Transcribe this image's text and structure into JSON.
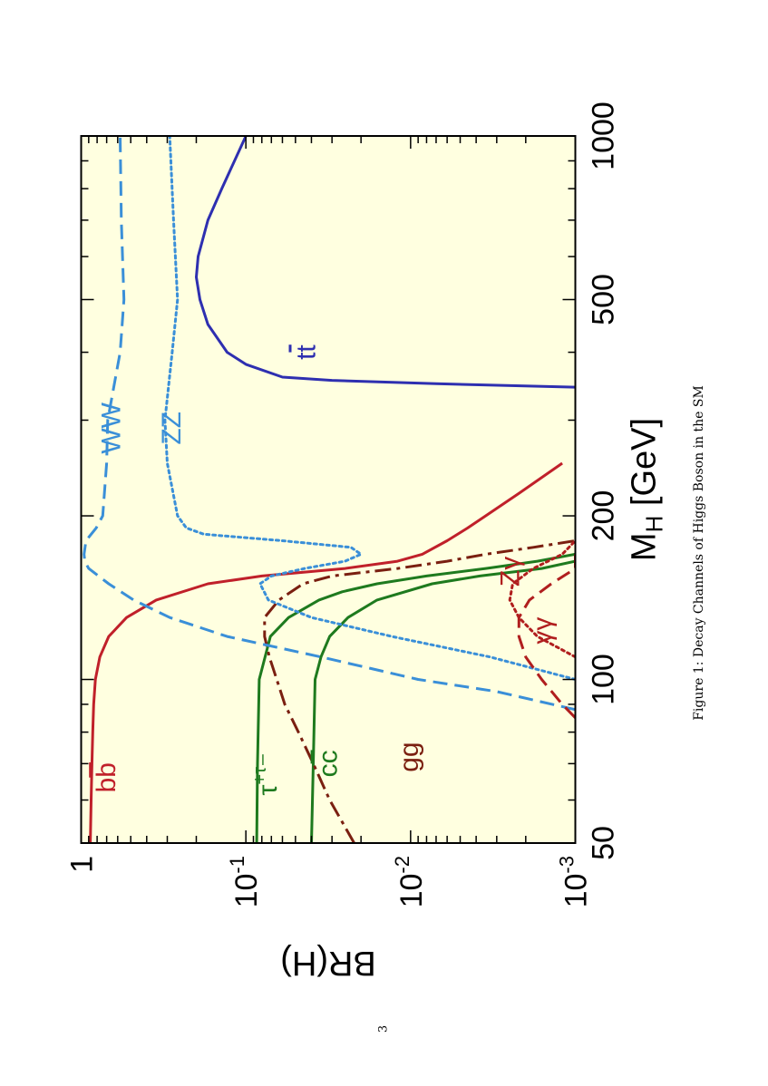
{
  "figure": {
    "caption": "Figure 1: Decay Channels of Higgs Boson in the SM",
    "page_number": "3"
  },
  "chart_data": {
    "type": "line",
    "orientation": "rotated 90° counter-clockwise on the page",
    "xlabel": "M_H [GeV]",
    "ylabel": "BR(H)",
    "xscale": "log",
    "yscale": "log",
    "xlim": [
      50,
      1000
    ],
    "ylim": [
      0.001,
      1
    ],
    "x_ticks": [
      50,
      100,
      200,
      500,
      1000
    ],
    "y_ticks": [
      {
        "value": 1,
        "label": "1"
      },
      {
        "value": 0.1,
        "label": "10",
        "exp": "-1"
      },
      {
        "value": 0.01,
        "label": "10",
        "exp": "-2"
      },
      {
        "value": 0.001,
        "label": "10",
        "exp": "-3"
      }
    ],
    "background": "#ffffe0",
    "grid": false,
    "series": [
      {
        "name": "bb",
        "label_main": "b",
        "label_sup": "",
        "bar": "b",
        "label_at": [
          66,
          0.62
        ],
        "color": "#c0202a",
        "dash": "solid",
        "x": [
          50,
          60,
          70,
          80,
          90,
          100,
          110,
          120,
          130,
          140,
          150,
          155,
          160,
          165,
          170,
          180,
          190,
          200,
          220,
          250
        ],
        "y": [
          0.88,
          0.87,
          0.86,
          0.85,
          0.84,
          0.82,
          0.77,
          0.68,
          0.53,
          0.35,
          0.17,
          0.08,
          0.025,
          0.012,
          0.0085,
          0.006,
          0.0045,
          0.0035,
          0.0022,
          0.0012
        ]
      },
      {
        "name": "τ⁺τ⁻",
        "label_main": "τ",
        "label_sup": "+τ",
        "bar": "",
        "label_at": [
          67,
          0.065
        ],
        "color": "#1e7a1e",
        "dash": "solid",
        "x": [
          50,
          70,
          100,
          120,
          130,
          140,
          145,
          150,
          155,
          160,
          165,
          170
        ],
        "y": [
          0.086,
          0.085,
          0.083,
          0.071,
          0.055,
          0.036,
          0.026,
          0.016,
          0.008,
          0.0035,
          0.0017,
          0.001
        ]
      },
      {
        "name": "cc",
        "label_main": "c",
        "label_sup": "",
        "bar": "c",
        "label_at": [
          70,
          0.028
        ],
        "color": "#1e7a1e",
        "dash": "solid",
        "x": [
          50,
          70,
          100,
          110,
          120,
          130,
          140,
          150,
          155,
          160,
          165
        ],
        "y": [
          0.04,
          0.039,
          0.038,
          0.035,
          0.031,
          0.024,
          0.016,
          0.0074,
          0.0038,
          0.0016,
          0.001
        ]
      },
      {
        "name": "gg",
        "label_main": "gg",
        "label_sup": "",
        "bar": "",
        "label_at": [
          72,
          0.009
        ],
        "color": "#7a1f10",
        "dash": "dashdot",
        "x": [
          50,
          60,
          70,
          80,
          90,
          100,
          110,
          120,
          130,
          140,
          150,
          155,
          160,
          165,
          170,
          175,
          180
        ],
        "y": [
          0.022,
          0.031,
          0.039,
          0.048,
          0.058,
          0.065,
          0.072,
          0.077,
          0.077,
          0.063,
          0.045,
          0.03,
          0.012,
          0.006,
          0.0035,
          0.0018,
          0.001
        ]
      },
      {
        "name": "WW",
        "label_main": "WW",
        "label_sup": "",
        "bar": "",
        "label_at": [
          290,
          0.58
        ],
        "color": "#3a8fd8",
        "dash": "dashed",
        "x": [
          88,
          95,
          100,
          110,
          120,
          130,
          140,
          150,
          160,
          165,
          170,
          180,
          190,
          200,
          250,
          300,
          400,
          500,
          700,
          1000
        ],
        "y": [
          0.001,
          0.003,
          0.009,
          0.035,
          0.13,
          0.29,
          0.48,
          0.68,
          0.9,
          0.95,
          0.96,
          0.935,
          0.81,
          0.74,
          0.7,
          0.69,
          0.58,
          0.55,
          0.57,
          0.58
        ]
      },
      {
        "name": "ZZ",
        "label_main": "ZZ",
        "label_sup": "",
        "bar": "",
        "label_at": [
          290,
          0.25
        ],
        "color": "#3a8fd8",
        "dash": "dotted",
        "x": [
          100,
          110,
          120,
          130,
          140,
          150,
          155,
          160,
          165,
          170,
          175,
          180,
          185,
          190,
          200,
          250,
          300,
          400,
          500,
          700,
          1000
        ],
        "y": [
          0.001,
          0.0033,
          0.013,
          0.04,
          0.073,
          0.082,
          0.07,
          0.044,
          0.025,
          0.02,
          0.023,
          0.06,
          0.18,
          0.23,
          0.26,
          0.3,
          0.31,
          0.28,
          0.26,
          0.275,
          0.29
        ]
      },
      {
        "name": "tt",
        "label_main": "t",
        "label_sup": "",
        "bar": "t",
        "label_at": [
          400,
          0.038
        ],
        "color": "#2e2fb0",
        "dash": "solid",
        "x": [
          345,
          350,
          355,
          360,
          380,
          400,
          450,
          500,
          550,
          600,
          700,
          800,
          1000
        ],
        "y": [
          0.001,
          0.007,
          0.03,
          0.06,
          0.1,
          0.13,
          0.17,
          0.19,
          0.2,
          0.195,
          0.17,
          0.14,
          0.1
        ]
      },
      {
        "name": "Zγ",
        "label_main": "Zγ",
        "label_sup": "",
        "bar": "",
        "label_at": [
          158,
          0.0022
        ],
        "color": "#b01e1e",
        "dash": "dotted",
        "x": [
          110,
          120,
          130,
          140,
          150,
          160,
          170,
          180
        ],
        "y": [
          0.001,
          0.0017,
          0.0022,
          0.0025,
          0.0024,
          0.0018,
          0.0012,
          0.001
        ]
      },
      {
        "name": "γγ",
        "label_main": "γγ",
        "label_sup": "",
        "bar": "",
        "label_at": [
          123,
          0.0014
        ],
        "color": "#b01e1e",
        "dash": "dashed",
        "x": [
          85,
          90,
          100,
          110,
          120,
          130,
          140,
          150,
          160,
          170
        ],
        "y": [
          0.001,
          0.0012,
          0.0016,
          0.002,
          0.0022,
          0.0022,
          0.0019,
          0.0014,
          0.001,
          0.001
        ]
      }
    ]
  }
}
